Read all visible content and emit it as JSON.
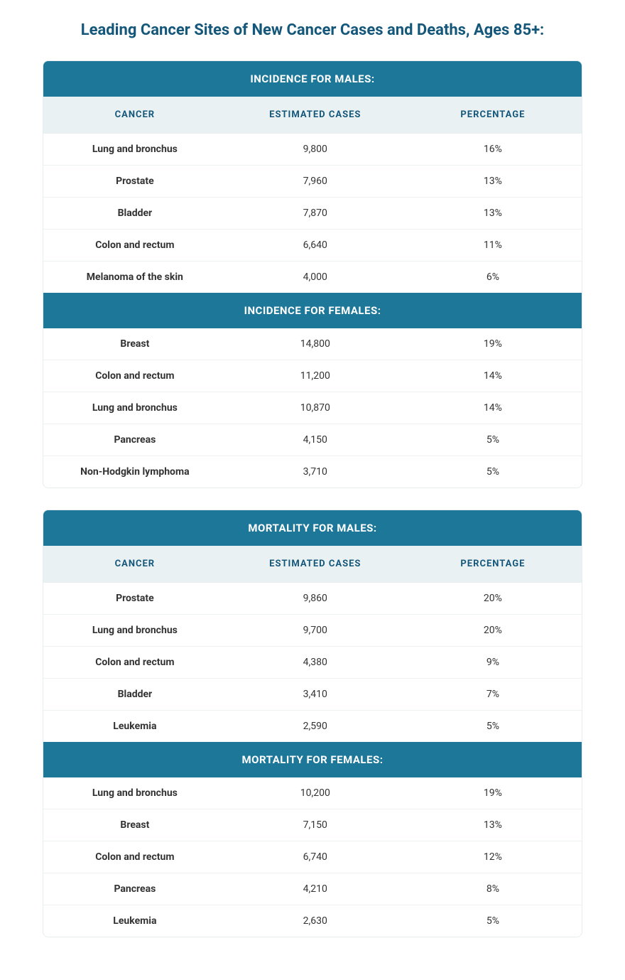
{
  "title": "Leading Cancer Sites of New Cancer Cases and Deaths, Ages 85+:",
  "columnHeaders": {
    "cancer": "CANCER",
    "cases": "ESTIMATED CASES",
    "pct": "PERCENTAGE"
  },
  "colors": {
    "sectionHeaderBg": "#1d7798",
    "sectionHeaderText": "#ffffff",
    "colHeaderBg": "#eaf1f3",
    "colHeaderText": "#14577a",
    "titleColor": "#14577a",
    "rowBorder": "#eef2f3",
    "containerBorder": "#e8eef0",
    "bodyText": "#333333"
  },
  "typography": {
    "titleSize": 22,
    "sectionHeaderSize": 15,
    "colHeaderSize": 13,
    "cellSize": 14
  },
  "tables": [
    {
      "sections": [
        {
          "header": "INCIDENCE FOR MALES:",
          "showColumnHeaders": true,
          "rows": [
            {
              "cancer": "Lung and bronchus",
              "cases": "9,800",
              "pct": "16%"
            },
            {
              "cancer": "Prostate",
              "cases": "7,960",
              "pct": "13%"
            },
            {
              "cancer": "Bladder",
              "cases": "7,870",
              "pct": "13%"
            },
            {
              "cancer": "Colon and rectum",
              "cases": "6,640",
              "pct": "11%"
            },
            {
              "cancer": "Melanoma of the skin",
              "cases": "4,000",
              "pct": "6%"
            }
          ]
        },
        {
          "header": "INCIDENCE FOR FEMALES:",
          "showColumnHeaders": false,
          "rows": [
            {
              "cancer": "Breast",
              "cases": "14,800",
              "pct": "19%"
            },
            {
              "cancer": "Colon and rectum",
              "cases": "11,200",
              "pct": "14%"
            },
            {
              "cancer": "Lung and bronchus",
              "cases": "10,870",
              "pct": "14%"
            },
            {
              "cancer": "Pancreas",
              "cases": "4,150",
              "pct": "5%"
            },
            {
              "cancer": "Non-Hodgkin lymphoma",
              "cases": "3,710",
              "pct": "5%"
            }
          ]
        }
      ]
    },
    {
      "sections": [
        {
          "header": "MORTALITY FOR MALES:",
          "showColumnHeaders": true,
          "rows": [
            {
              "cancer": "Prostate",
              "cases": "9,860",
              "pct": "20%"
            },
            {
              "cancer": "Lung and bronchus",
              "cases": "9,700",
              "pct": "20%"
            },
            {
              "cancer": "Colon and rectum",
              "cases": "4,380",
              "pct": "9%"
            },
            {
              "cancer": "Bladder",
              "cases": "3,410",
              "pct": "7%"
            },
            {
              "cancer": "Leukemia",
              "cases": "2,590",
              "pct": "5%"
            }
          ]
        },
        {
          "header": "MORTALITY FOR FEMALES:",
          "showColumnHeaders": false,
          "rows": [
            {
              "cancer": "Lung and bronchus",
              "cases": "10,200",
              "pct": "19%"
            },
            {
              "cancer": "Breast",
              "cases": "7,150",
              "pct": "13%"
            },
            {
              "cancer": "Colon and rectum",
              "cases": "6,740",
              "pct": "12%"
            },
            {
              "cancer": "Pancreas",
              "cases": "4,210",
              "pct": "8%"
            },
            {
              "cancer": "Leukemia",
              "cases": "2,630",
              "pct": "5%"
            }
          ]
        }
      ]
    }
  ]
}
